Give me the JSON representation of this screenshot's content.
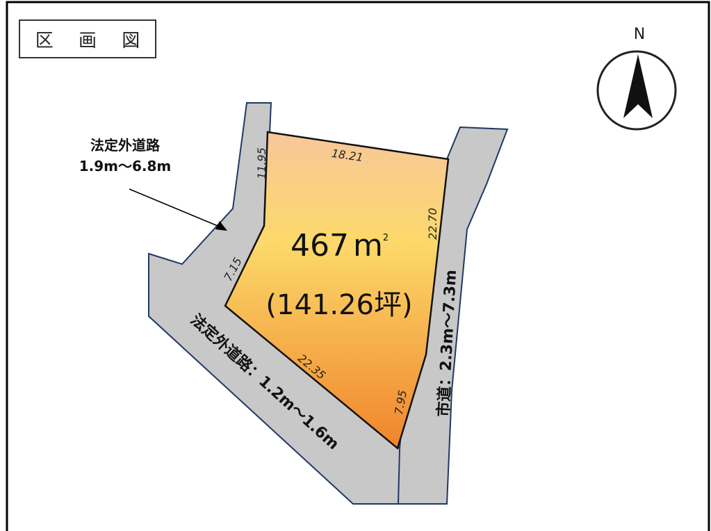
{
  "title": "区 画 図",
  "compass": {
    "label": "N"
  },
  "parcel": {
    "area": "467",
    "area_unit": "m",
    "area_unit_sup": "2",
    "area_tsubo": "(141.26坪)",
    "dims": {
      "top": "18.21",
      "left_upper": "11.95",
      "right": "22.70",
      "left_diag": "7.15",
      "bottom": "22.35",
      "bottom_right": "7.95"
    }
  },
  "roads": {
    "offroad_top_label_line1": "法定外道路",
    "offroad_top_label_line2": "1.9m～6.8m",
    "offroad_bottom_label": "法定外道路：1.2m～1.6m",
    "city_road_label": "市道：2.3m～7.3m"
  },
  "colors": {
    "road_fill": "#c8c8c8",
    "road_stroke": "#1f3864",
    "parcel_top": "#f7c79a",
    "parcel_mid": "#fcd96a",
    "parcel_bottom": "#f0842c"
  }
}
